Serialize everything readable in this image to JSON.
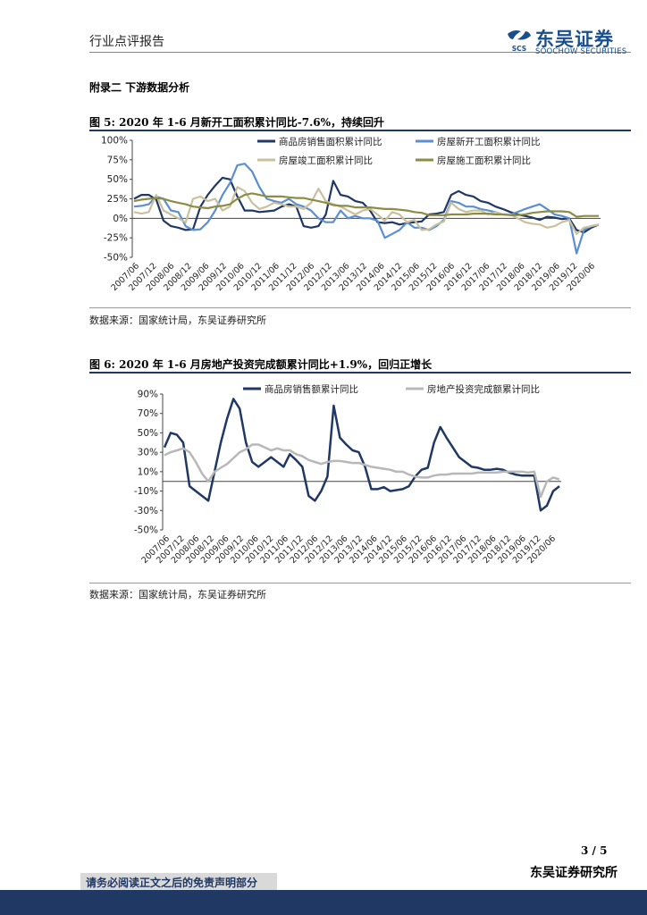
{
  "header": {
    "report_type": "行业点评报告",
    "brand_cn": "东吴证券",
    "brand_en": "SOOCHOW SECURITIES",
    "logo_mark": "SCS"
  },
  "section_title": "附录二  下游数据分析",
  "figure5": {
    "title": "图 5:  2020 年 1-6 月新开工面积累计同比-7.6%，持续回升",
    "source": "数据来源：国家统计局，东吴证券研究所"
  },
  "figure6": {
    "title": "图 6:  2020 年 1-6 月房地产投资完成额累计同比+1.9%，回归正增长",
    "source": "数据来源：国家统计局，东吴证券研究所"
  },
  "chart_data": [
    {
      "type": "line",
      "title": "图 5",
      "x_tick_labels": [
        "2007/06",
        "2007/12",
        "2008/06",
        "2008/12",
        "2009/06",
        "2009/12",
        "2010/06",
        "2010/12",
        "2011/06",
        "2011/12",
        "2012/06",
        "2012/12",
        "2013/06",
        "2013/12",
        "2014/06",
        "2014/12",
        "2015/06",
        "2015/12",
        "2016/06",
        "2016/12",
        "2017/06",
        "2017/12",
        "2018/06",
        "2018/12",
        "2019/06",
        "2019/12",
        "2020/06"
      ],
      "y_tick_labels": [
        "100%",
        "75%",
        "50%",
        "25%",
        "0%",
        "-25%",
        "-50%"
      ],
      "ylim": [
        -50,
        100
      ],
      "series": [
        {
          "name": "商品房销售面积累计同比",
          "color": "#1f3864",
          "values": [
            25,
            30,
            30,
            24,
            -3,
            -10,
            -12,
            -15,
            -14,
            15,
            30,
            42,
            52,
            50,
            28,
            10,
            10,
            8,
            9,
            10,
            15,
            18,
            15,
            -10,
            -12,
            -10,
            5,
            48,
            30,
            28,
            22,
            20,
            10,
            -5,
            -6,
            -5,
            -8,
            -6,
            -5,
            -4,
            5,
            6,
            8,
            30,
            35,
            30,
            28,
            22,
            20,
            15,
            12,
            8,
            5,
            3,
            1,
            -2,
            2,
            1,
            -1,
            0,
            -15,
            -18,
            -12,
            -8
          ]
        },
        {
          "name": "房屋新开工面积累计同比",
          "color": "#5b8fd0",
          "values": [
            15,
            16,
            18,
            28,
            25,
            10,
            8,
            -10,
            -15,
            -14,
            -5,
            10,
            30,
            45,
            68,
            70,
            60,
            40,
            25,
            22,
            20,
            25,
            18,
            15,
            10,
            0,
            -5,
            -5,
            10,
            0,
            3,
            0,
            0,
            -3,
            -25,
            -20,
            -15,
            -5,
            -12,
            -12,
            -15,
            -10,
            -2,
            22,
            20,
            15,
            15,
            12,
            10,
            8,
            5,
            5,
            8,
            12,
            15,
            18,
            12,
            5,
            3,
            0,
            -45,
            -15,
            -10,
            -8
          ]
        },
        {
          "name": "房屋竣工面积累计同比",
          "color": "#c9c19e",
          "values": [
            8,
            6,
            8,
            30,
            10,
            5,
            0,
            -5,
            25,
            28,
            22,
            25,
            10,
            15,
            40,
            35,
            20,
            12,
            15,
            20,
            18,
            15,
            15,
            12,
            20,
            38,
            22,
            18,
            15,
            10,
            5,
            10,
            12,
            5,
            -3,
            8,
            5,
            -5,
            -2,
            -15,
            -14,
            -8,
            -4,
            20,
            12,
            8,
            10,
            10,
            5,
            8,
            5,
            5,
            0,
            -5,
            -7,
            -8,
            -12,
            -10,
            -5,
            -2,
            -20,
            -12,
            -10,
            -8
          ]
        },
        {
          "name": "房屋施工面积累计同比",
          "color": "#8c8c45",
          "values": [
            22,
            24,
            25,
            26,
            25,
            22,
            20,
            18,
            15,
            14,
            13,
            15,
            16,
            18,
            25,
            30,
            32,
            30,
            28,
            28,
            28,
            27,
            26,
            26,
            24,
            22,
            20,
            17,
            16,
            16,
            14,
            14,
            14,
            13,
            12,
            12,
            11,
            10,
            8,
            7,
            4,
            4,
            4,
            5,
            5,
            5,
            6,
            6,
            6,
            5,
            5,
            4,
            4,
            5,
            7,
            8,
            9,
            9,
            9,
            8,
            2,
            3,
            3,
            3
          ]
        }
      ]
    },
    {
      "type": "line",
      "title": "图 6",
      "x_tick_labels": [
        "2007/06",
        "2007/12",
        "2008/06",
        "2008/12",
        "2009/06",
        "2009/12",
        "2010/06",
        "2010/12",
        "2011/06",
        "2011/12",
        "2012/06",
        "2012/12",
        "2013/06",
        "2013/12",
        "2014/06",
        "2014/12",
        "2015/06",
        "2015/12",
        "2016/06",
        "2016/12",
        "2017/06",
        "2017/12",
        "2018/06",
        "2018/12",
        "2019/06",
        "2019/12",
        "2020/06"
      ],
      "y_tick_labels": [
        "90%",
        "70%",
        "50%",
        "30%",
        "10%",
        "-10%",
        "-30%",
        "-50%"
      ],
      "ylim": [
        -50,
        90
      ],
      "series": [
        {
          "name": "商品房销售额累计同比",
          "color": "#1f3864",
          "values": [
            35,
            50,
            48,
            40,
            -5,
            -10,
            -15,
            -20,
            10,
            40,
            65,
            85,
            75,
            40,
            20,
            15,
            20,
            25,
            20,
            15,
            28,
            22,
            15,
            -15,
            -20,
            -10,
            5,
            78,
            45,
            38,
            32,
            30,
            15,
            -8,
            -8,
            -6,
            -10,
            -9,
            -8,
            -5,
            5,
            12,
            14,
            40,
            56,
            45,
            35,
            25,
            20,
            15,
            14,
            12,
            12,
            13,
            12,
            9,
            7,
            6,
            6,
            6,
            -30,
            -25,
            -10,
            -5
          ]
        },
        {
          "name": "房地产投资完成额累计同比",
          "color": "#b8b8b8",
          "values": [
            27,
            30,
            32,
            34,
            30,
            20,
            8,
            0,
            10,
            14,
            18,
            24,
            30,
            33,
            38,
            38,
            35,
            32,
            34,
            32,
            32,
            28,
            26,
            22,
            20,
            18,
            20,
            21,
            21,
            20,
            19,
            19,
            17,
            15,
            14,
            13,
            12,
            10,
            10,
            7,
            5,
            4,
            4,
            6,
            7,
            7,
            8,
            8,
            8,
            8,
            9,
            9,
            9,
            9,
            10,
            10,
            10,
            10,
            9,
            10,
            -16,
            0,
            4,
            2
          ]
        }
      ]
    }
  ]
}
